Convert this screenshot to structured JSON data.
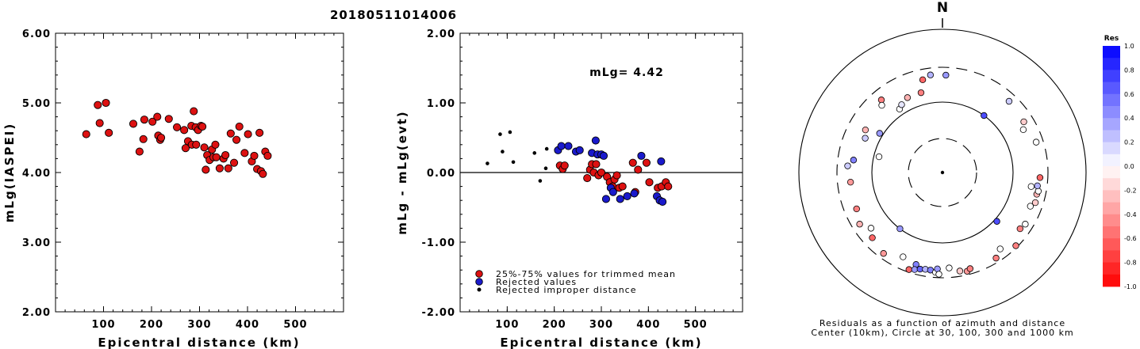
{
  "figure": {
    "title": "20180511014006",
    "north_label": "N",
    "polar_caption_line1": "Residuals as a function of azimuth and distance",
    "polar_caption_line2": "Center (10km), Circle at 30, 100, 300 and 1000 km",
    "colorbar_title": "Res",
    "colorbar_ticks": [
      "1.0",
      "0.8",
      "0.6",
      "0.4",
      "0.2",
      "0.0",
      "-0.2",
      "-0.4",
      "-0.6",
      "-0.8",
      "-1.0"
    ],
    "colors": {
      "red": "#dd1111",
      "blue": "#1a1acc",
      "black": "#000000"
    }
  },
  "chart_data": [
    {
      "type": "scatter",
      "xlabel": "Epicentral distance (km)",
      "ylabel": "mLg(IASPEI)",
      "xlim": [
        0,
        600
      ],
      "ylim": [
        2.0,
        6.0
      ],
      "xticks": [
        "100",
        "200",
        "300",
        "400",
        "500"
      ],
      "yticks": [
        "2.00",
        "3.00",
        "4.00",
        "5.00",
        "6.00"
      ],
      "series": [
        {
          "marker": "red",
          "points": [
            [
              64,
              4.55
            ],
            [
              88,
              4.97
            ],
            [
              92,
              4.71
            ],
            [
              105,
              5.0
            ],
            [
              111,
              4.57
            ],
            [
              162,
              4.7
            ],
            [
              175,
              4.3
            ],
            [
              183,
              4.48
            ],
            [
              185,
              4.76
            ],
            [
              202,
              4.73
            ],
            [
              212,
              4.8
            ],
            [
              214,
              4.53
            ],
            [
              218,
              4.47
            ],
            [
              220,
              4.5
            ],
            [
              236,
              4.77
            ],
            [
              253,
              4.65
            ],
            [
              268,
              4.61
            ],
            [
              271,
              4.35
            ],
            [
              276,
              4.45
            ],
            [
              283,
              4.67
            ],
            [
              284,
              4.4
            ],
            [
              288,
              4.88
            ],
            [
              292,
              4.65
            ],
            [
              293,
              4.4
            ],
            [
              297,
              4.61
            ],
            [
              303,
              4.67
            ],
            [
              306,
              4.66
            ],
            [
              310,
              4.36
            ],
            [
              313,
              4.04
            ],
            [
              316,
              4.25
            ],
            [
              321,
              4.18
            ],
            [
              326,
              4.33
            ],
            [
              329,
              4.22
            ],
            [
              333,
              4.4
            ],
            [
              335,
              4.22
            ],
            [
              342,
              4.06
            ],
            [
              350,
              4.2
            ],
            [
              354,
              4.25
            ],
            [
              360,
              4.06
            ],
            [
              365,
              4.56
            ],
            [
              372,
              4.14
            ],
            [
              377,
              4.47
            ],
            [
              383,
              4.66
            ],
            [
              394,
              4.28
            ],
            [
              401,
              4.55
            ],
            [
              409,
              4.16
            ],
            [
              414,
              4.24
            ],
            [
              420,
              4.05
            ],
            [
              425,
              4.57
            ],
            [
              428,
              4.02
            ],
            [
              432,
              3.98
            ],
            [
              437,
              4.3
            ],
            [
              442,
              4.24
            ]
          ]
        }
      ]
    },
    {
      "type": "scatter",
      "xlabel": "Epicentral distance (km)",
      "ylabel": "mLg - mLg(evt)",
      "xlim": [
        0,
        600
      ],
      "ylim": [
        -2.0,
        2.0
      ],
      "xticks": [
        "100",
        "200",
        "300",
        "400",
        "500"
      ],
      "yticks": [
        "-2.00",
        "-1.00",
        "0.00",
        "1.00",
        "2.00"
      ],
      "annotation": "mLg= 4.42",
      "reference_line": 0.0,
      "legend": [
        {
          "marker": "red",
          "label": "25%-75% values for trimmed mean"
        },
        {
          "marker": "blue",
          "label": "Rejected values"
        },
        {
          "marker": "black",
          "label": "Rejected improper distance"
        }
      ],
      "series": [
        {
          "name": "25%-75% values for trimmed mean",
          "marker": "red",
          "points": [
            [
              212,
              0.1
            ],
            [
              218,
              0.05
            ],
            [
              222,
              0.1
            ],
            [
              270,
              -0.08
            ],
            [
              276,
              0.04
            ],
            [
              280,
              0.12
            ],
            [
              284,
              0.0
            ],
            [
              289,
              0.12
            ],
            [
              294,
              -0.04
            ],
            [
              300,
              0.0
            ],
            [
              312,
              -0.06
            ],
            [
              318,
              -0.14
            ],
            [
              324,
              -0.2
            ],
            [
              328,
              -0.1
            ],
            [
              333,
              -0.04
            ],
            [
              338,
              -0.22
            ],
            [
              345,
              -0.2
            ],
            [
              367,
              0.14
            ],
            [
              372,
              -0.28
            ],
            [
              378,
              0.04
            ],
            [
              396,
              0.14
            ],
            [
              402,
              -0.14
            ],
            [
              420,
              -0.22
            ],
            [
              428,
              -0.2
            ],
            [
              437,
              -0.14
            ],
            [
              442,
              -0.2
            ]
          ]
        },
        {
          "name": "Rejected values",
          "marker": "blue",
          "points": [
            [
              208,
              0.32
            ],
            [
              215,
              0.38
            ],
            [
              230,
              0.38
            ],
            [
              246,
              0.3
            ],
            [
              254,
              0.32
            ],
            [
              280,
              0.28
            ],
            [
              288,
              0.46
            ],
            [
              292,
              0.26
            ],
            [
              300,
              0.26
            ],
            [
              305,
              0.24
            ],
            [
              310,
              -0.38
            ],
            [
              320,
              -0.22
            ],
            [
              325,
              -0.28
            ],
            [
              340,
              -0.38
            ],
            [
              355,
              -0.34
            ],
            [
              370,
              -0.3
            ],
            [
              385,
              0.24
            ],
            [
              418,
              -0.34
            ],
            [
              424,
              -0.4
            ],
            [
              427,
              0.16
            ],
            [
              430,
              -0.42
            ]
          ]
        },
        {
          "name": "Rejected improper distance",
          "marker": "black",
          "points": [
            [
              58,
              0.13
            ],
            [
              85,
              0.55
            ],
            [
              90,
              0.3
            ],
            [
              106,
              0.58
            ],
            [
              113,
              0.15
            ],
            [
              158,
              0.28
            ],
            [
              170,
              -0.12
            ],
            [
              182,
              0.06
            ],
            [
              184,
              0.34
            ]
          ]
        }
      ]
    },
    {
      "type": "polar-scatter",
      "radial_rings_km": [
        30,
        100,
        300,
        1000
      ],
      "center_km": 10,
      "ring_style": [
        "dashed",
        "solid",
        "dashed",
        "solid"
      ],
      "colorscale": {
        "min": -1.0,
        "max": 1.0,
        "negative": "red",
        "positive": "blue"
      },
      "points": [
        {
          "az": 335,
          "dist": 170,
          "res": -0.3
        },
        {
          "az": 345,
          "dist": 170,
          "res": -0.5
        },
        {
          "az": 348,
          "dist": 240,
          "res": -0.6
        },
        {
          "az": 353,
          "dist": 260,
          "res": 0.3
        },
        {
          "az": 320,
          "dist": 240,
          "res": -0.5
        },
        {
          "az": 326,
          "dist": 135,
          "res": 0.0
        },
        {
          "az": 329,
          "dist": 150,
          "res": 0.1
        },
        {
          "az": 318,
          "dist": 215,
          "res": 0.0
        },
        {
          "az": 302,
          "dist": 120,
          "res": 0.4
        },
        {
          "az": 299,
          "dist": 200,
          "res": -0.3
        },
        {
          "az": 294,
          "dist": 180,
          "res": 0.2
        },
        {
          "az": 284,
          "dist": 90,
          "res": 0.0
        },
        {
          "az": 278,
          "dist": 210,
          "res": 0.5
        },
        {
          "az": 274,
          "dist": 240,
          "res": 0.2
        },
        {
          "az": 264,
          "dist": 225,
          "res": -0.4
        },
        {
          "az": 247,
          "dist": 230,
          "res": -0.5
        },
        {
          "az": 238,
          "dist": 255,
          "res": -0.3
        },
        {
          "az": 232,
          "dist": 215,
          "res": 0.0
        },
        {
          "az": 227,
          "dist": 245,
          "res": -0.6
        },
        {
          "az": 216,
          "dist": 270,
          "res": -0.4
        },
        {
          "az": 205,
          "dist": 230,
          "res": 0.0
        },
        {
          "az": 196,
          "dist": 245,
          "res": 0.5
        },
        {
          "az": 199,
          "dist": 285,
          "res": -0.6
        },
        {
          "az": 196,
          "dist": 275,
          "res": 0.4
        },
        {
          "az": 193,
          "dist": 265,
          "res": 0.6
        },
        {
          "az": 190,
          "dist": 260,
          "res": 0.3
        },
        {
          "az": 187,
          "dist": 260,
          "res": 0.5
        },
        {
          "az": 184,
          "dist": 270,
          "res": 0.0
        },
        {
          "az": 183,
          "dist": 250,
          "res": 0.4
        },
        {
          "az": 182,
          "dist": 280,
          "res": 0.0
        },
        {
          "az": 176,
          "dist": 245,
          "res": 0.0
        },
        {
          "az": 170,
          "dist": 270,
          "res": -0.2
        },
        {
          "az": 166,
          "dist": 280,
          "res": -0.4
        },
        {
          "az": 164,
          "dist": 270,
          "res": -0.5
        },
        {
          "az": 148,
          "dist": 275,
          "res": -0.5
        },
        {
          "az": 143,
          "dist": 245,
          "res": 0.0
        },
        {
          "az": 135,
          "dist": 290,
          "res": -0.5
        },
        {
          "az": 126,
          "dist": 245,
          "res": -0.5
        },
        {
          "az": 122,
          "dist": 255,
          "res": 0.0
        },
        {
          "az": 111,
          "dist": 235,
          "res": 0.0
        },
        {
          "az": 108,
          "dist": 255,
          "res": -0.2
        },
        {
          "az": 103,
          "dist": 250,
          "res": -0.3
        },
        {
          "az": 101,
          "dist": 255,
          "res": 0.0
        },
        {
          "az": 98,
          "dist": 245,
          "res": 0.3
        },
        {
          "az": 93,
          "dist": 255,
          "res": -0.6
        },
        {
          "az": 99,
          "dist": 210,
          "res": 0.0
        },
        {
          "az": 72,
          "dist": 260,
          "res": 0.0
        },
        {
          "az": 62,
          "dist": 220,
          "res": 0.0
        },
        {
          "az": 58,
          "dist": 245,
          "res": -0.2
        },
        {
          "az": 43,
          "dist": 255,
          "res": 0.2
        },
        {
          "az": 36,
          "dist": 100,
          "res": 0.7
        },
        {
          "az": 2,
          "dist": 255,
          "res": 0.4
        },
        {
          "az": 132,
          "dist": 115,
          "res": 0.7
        },
        {
          "az": 217,
          "dist": 100,
          "res": 0.4
        }
      ]
    }
  ]
}
